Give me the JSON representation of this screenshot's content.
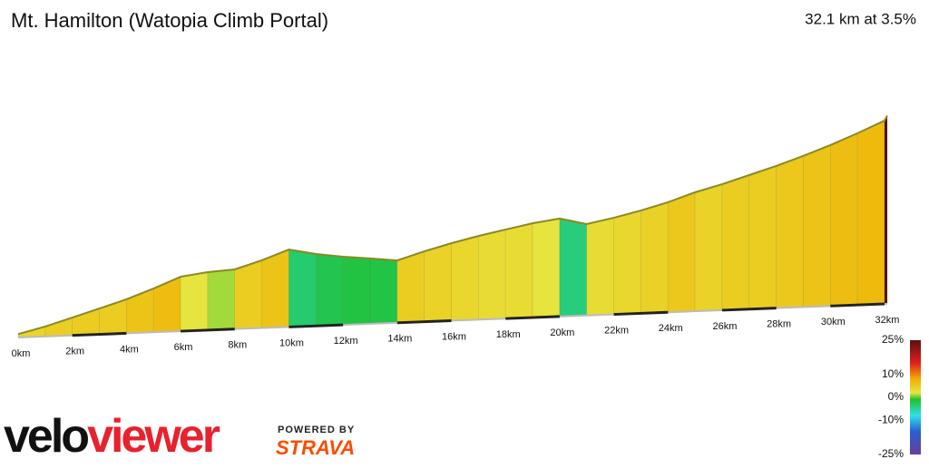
{
  "chart_data": {
    "type": "area",
    "title": "Mt. Hamilton (Watopia Climb Portal)",
    "subtitle": "32.1 km at 3.5%",
    "x": [
      0,
      1,
      2,
      3,
      4,
      5,
      6,
      7,
      8,
      9,
      10,
      11,
      12,
      13,
      14,
      15,
      16,
      17,
      18,
      19,
      20,
      21,
      22,
      23,
      24,
      25,
      26,
      27,
      28,
      29,
      30,
      31,
      32,
      32.1
    ],
    "series": [
      {
        "values": [
          20,
          59,
          106,
          154,
          202,
          260,
          324,
          345,
          355,
          403,
          461,
          428,
          406,
          389,
          371,
          419,
          461,
          498,
          530,
          561,
          583,
          544,
          575,
          612,
          655,
          708,
          750,
          798,
          846,
          900,
          958,
          1022,
          1091,
          1120
        ]
      }
    ],
    "xlim": [
      0,
      32.1
    ],
    "xticks": [
      {
        "value": 0,
        "label": "0km"
      },
      {
        "value": 2,
        "label": "2km"
      },
      {
        "value": 4,
        "label": "4km"
      },
      {
        "value": 6,
        "label": "6km"
      },
      {
        "value": 8,
        "label": "8km"
      },
      {
        "value": 10,
        "label": "10km"
      },
      {
        "value": 12,
        "label": "12km"
      },
      {
        "value": 14,
        "label": "14km"
      },
      {
        "value": 16,
        "label": "16km"
      },
      {
        "value": 18,
        "label": "18km"
      },
      {
        "value": 20,
        "label": "20km"
      },
      {
        "value": 22,
        "label": "22km"
      },
      {
        "value": 24,
        "label": "24km"
      },
      {
        "value": 26,
        "label": "26km"
      },
      {
        "value": 28,
        "label": "28km"
      },
      {
        "value": 30,
        "label": "30km"
      },
      {
        "value": 32,
        "label": "32km"
      }
    ],
    "colorbar": {
      "ticks": [
        {
          "value": 25,
          "label": "25%"
        },
        {
          "value": 10,
          "label": "10%"
        },
        {
          "value": 0,
          "label": "0%"
        },
        {
          "value": -10,
          "label": "-10%"
        },
        {
          "value": -25,
          "label": "-25%"
        }
      ],
      "stops": [
        {
          "value": -25,
          "color": "#6a3d9a"
        },
        {
          "value": -15,
          "color": "#2a5fd0"
        },
        {
          "value": -8,
          "color": "#30e0e8"
        },
        {
          "value": -1,
          "color": "#20c030"
        },
        {
          "value": 2,
          "color": "#e6e640"
        },
        {
          "value": 8,
          "color": "#f0b000"
        },
        {
          "value": 15,
          "color": "#e02020"
        },
        {
          "value": 25,
          "color": "#5a1010"
        }
      ]
    }
  },
  "logos": {
    "brand_1": "velo",
    "brand_2": "viewer",
    "powered": "POWERED BY",
    "strava": "STRAVA"
  }
}
